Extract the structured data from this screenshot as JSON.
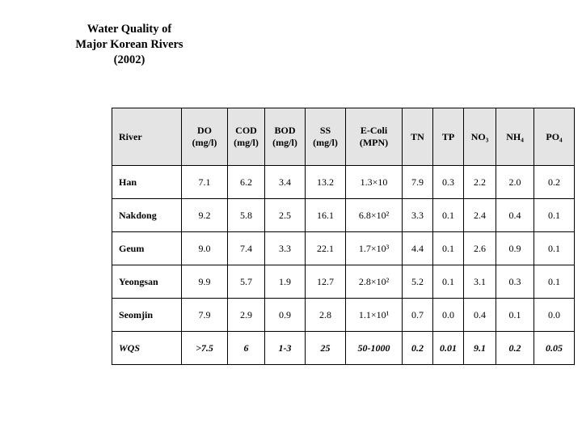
{
  "title": {
    "text": "Water Quality of\nMajor Korean Rivers\n(2002)"
  },
  "table": {
    "header_bg": "#e4e4e4",
    "border_color": "#000000",
    "columns": [
      {
        "label": "River"
      },
      {
        "label": "DO\n(mg/l)"
      },
      {
        "label": "COD\n(mg/l)"
      },
      {
        "label": "BOD\n(mg/l)"
      },
      {
        "label": "SS\n(mg/l)"
      },
      {
        "label": "E-Coli\n(MPN)"
      },
      {
        "label": "TN"
      },
      {
        "label": "TP"
      },
      {
        "label": "NO₃"
      },
      {
        "label": "NH₄"
      },
      {
        "label": "PO₄"
      }
    ],
    "rows": [
      {
        "river": "Han",
        "emphasis": false,
        "values": [
          "7.1",
          "6.2",
          "3.4",
          "13.2",
          "1.3×10",
          "7.9",
          "0.3",
          "2.2",
          "2.0",
          "0.2"
        ]
      },
      {
        "river": "Nakdong",
        "emphasis": false,
        "values": [
          "9.2",
          "5.8",
          "2.5",
          "16.1",
          "6.8×10²",
          "3.3",
          "0.1",
          "2.4",
          "0.4",
          "0.1"
        ]
      },
      {
        "river": "Geum",
        "emphasis": false,
        "values": [
          "9.0",
          "7.4",
          "3.3",
          "22.1",
          "1.7×10³",
          "4.4",
          "0.1",
          "2.6",
          "0.9",
          "0.1"
        ]
      },
      {
        "river": "Yeongsan",
        "emphasis": false,
        "values": [
          "9.9",
          "5.7",
          "1.9",
          "12.7",
          "2.8×10²",
          "5.2",
          "0.1",
          "3.1",
          "0.3",
          "0.1"
        ]
      },
      {
        "river": "Seomjin",
        "emphasis": false,
        "values": [
          "7.9",
          "2.9",
          "0.9",
          "2.8",
          "1.1×10¹",
          "0.7",
          "0.0",
          "0.4",
          "0.1",
          "0.0"
        ]
      },
      {
        "river": "WQS",
        "emphasis": true,
        "values": [
          ">7.5",
          "6",
          "1-3",
          "25",
          "50-1000",
          "0.2",
          "0.01",
          "9.1",
          "0.2",
          "0.05"
        ]
      }
    ]
  }
}
